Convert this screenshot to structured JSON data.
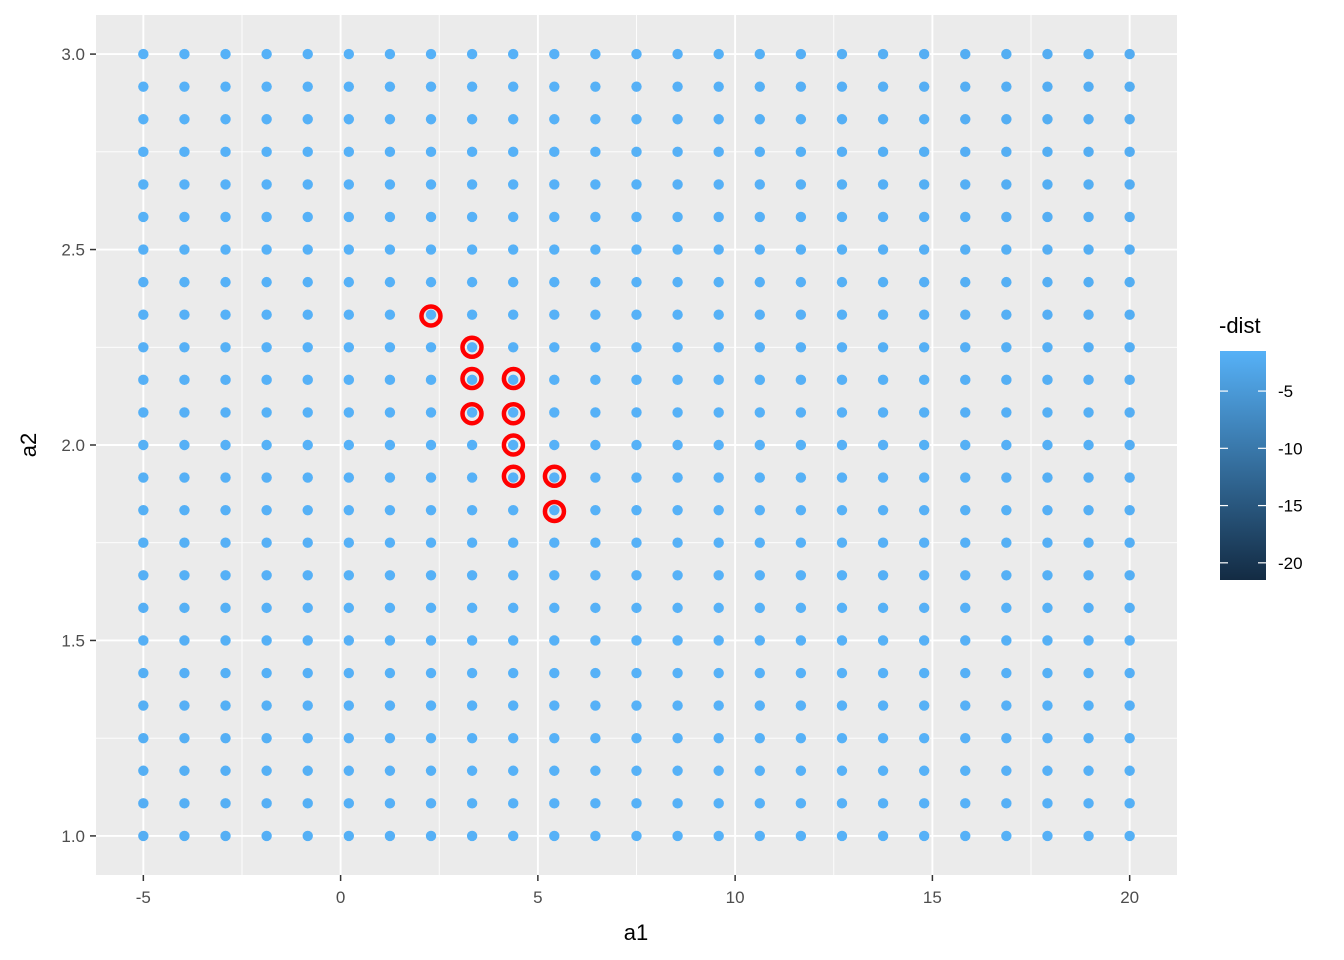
{
  "chart_data": {
    "type": "scatter",
    "title": "",
    "xlabel": "a1",
    "ylabel": "a2",
    "xlim": [
      -6.2,
      21.2
    ],
    "ylim": [
      0.9,
      3.1
    ],
    "x_ticks": [
      -5,
      0,
      5,
      10,
      15,
      20
    ],
    "x_tick_labels": [
      "-5",
      "0",
      "5",
      "10",
      "15",
      "20"
    ],
    "y_ticks": [
      1.0,
      1.5,
      2.0,
      2.5,
      3.0
    ],
    "y_tick_labels": [
      "1.0",
      "1.5",
      "2.0",
      "2.5",
      "3.0"
    ],
    "grid": true,
    "grid_x": {
      "start": -5,
      "end": 20,
      "count": 25
    },
    "grid_y": {
      "start": 1.0,
      "end": 3.0,
      "count": 25
    },
    "color_variable": "-dist",
    "legend": {
      "title": "-dist",
      "position": "right",
      "range": [
        -21.5,
        -1.5
      ],
      "ticks": [
        -5,
        -10,
        -15,
        -20
      ],
      "tick_labels": [
        "-5",
        "-10",
        "-15",
        "-20"
      ],
      "color_high": "#56B1F7",
      "color_low": "#132B43"
    },
    "highlighted": {
      "color": "#ff0000",
      "points": [
        {
          "x": 2.29,
          "y": 2.33
        },
        {
          "x": 3.33,
          "y": 2.25
        },
        {
          "x": 3.33,
          "y": 2.17
        },
        {
          "x": 3.33,
          "y": 2.08
        },
        {
          "x": 4.38,
          "y": 2.17
        },
        {
          "x": 4.38,
          "y": 2.08
        },
        {
          "x": 4.38,
          "y": 2.0
        },
        {
          "x": 4.38,
          "y": 1.92
        },
        {
          "x": 5.42,
          "y": 1.92
        },
        {
          "x": 5.42,
          "y": 1.83
        }
      ]
    }
  }
}
